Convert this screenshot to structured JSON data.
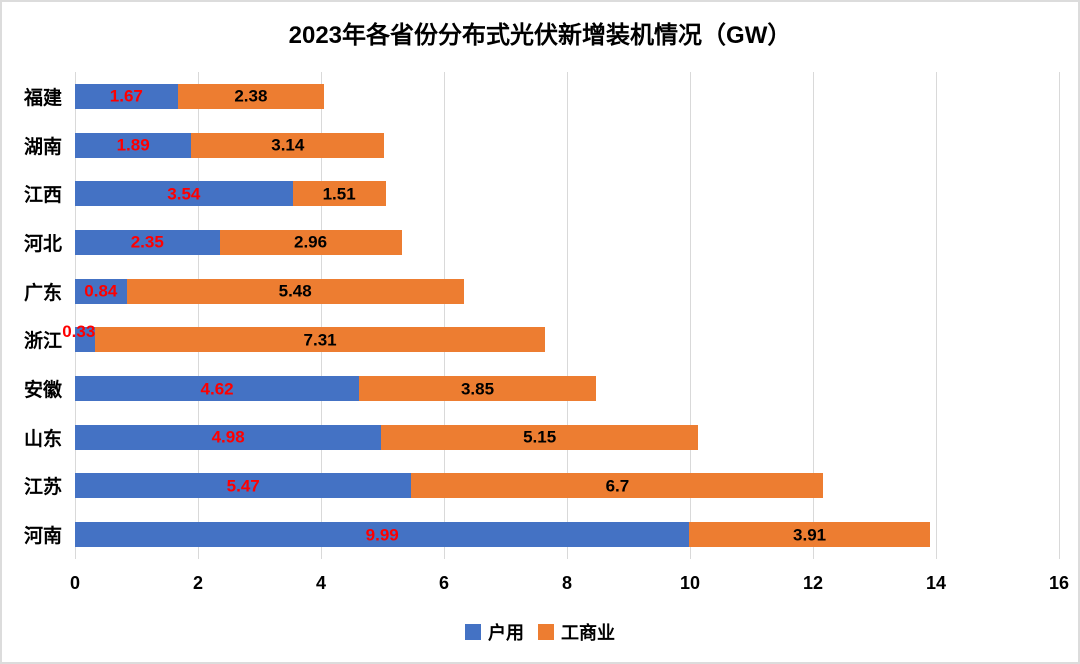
{
  "title": "2023年各省份分布式光伏新增装机情况（GW）",
  "chart_data": {
    "type": "bar",
    "orientation": "horizontal",
    "stacked": true,
    "title": "2023年各省份分布式光伏新增装机情况（GW）",
    "categories": [
      "福建",
      "湖南",
      "江西",
      "河北",
      "广东",
      "浙江",
      "安徽",
      "山东",
      "江苏",
      "河南"
    ],
    "series": [
      {
        "name": "户用",
        "color": "#4472C4",
        "label_color": "#FF0000",
        "values": [
          1.67,
          1.89,
          3.54,
          2.35,
          0.84,
          0.33,
          4.62,
          4.98,
          5.47,
          9.99
        ]
      },
      {
        "name": "工商业",
        "color": "#ED7D31",
        "label_color": "#000000",
        "values": [
          2.38,
          3.14,
          1.51,
          2.96,
          5.48,
          7.31,
          3.85,
          5.15,
          6.7,
          3.91
        ]
      }
    ],
    "xlim": [
      0,
      16
    ],
    "x_ticks": [
      0,
      2,
      4,
      6,
      8,
      10,
      12,
      14,
      16
    ],
    "grid": "vertical-only",
    "gridline_color": "#D9D9D9",
    "legend_position": "bottom",
    "background": "#FFFFFF",
    "frame_color": "#DCDCDC"
  }
}
